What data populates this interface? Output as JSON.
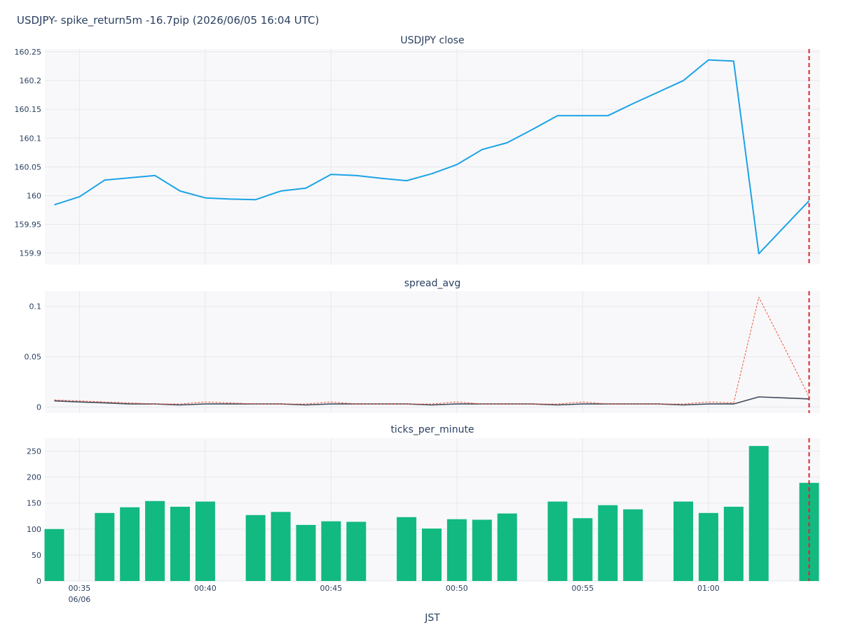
{
  "title": "USDJPY- spike_return5m -16.7pip (2026/06/05 16:04 UTC)",
  "colors": {
    "close": "#1ba3e6",
    "spread": "#3f4a5c",
    "spread_max": "#ef553b",
    "ticks": "#12b981",
    "event": "#d62728",
    "plot_bg": "#f8f8fa",
    "grid": "#e6e8ef"
  },
  "chart_data": [
    {
      "type": "line",
      "title": "USDJPY close",
      "x": [
        "00:34",
        "00:35",
        "00:36",
        "00:37",
        "00:38",
        "00:39",
        "00:40",
        "00:41",
        "00:42",
        "00:43",
        "00:44",
        "00:45",
        "00:46",
        "00:47",
        "00:48",
        "00:49",
        "00:50",
        "00:51",
        "00:52",
        "00:53",
        "00:54",
        "00:55",
        "00:56",
        "00:57",
        "00:58",
        "00:59",
        "01:00",
        "01:01",
        "01:02",
        "01:03",
        "01:04"
      ],
      "series": [
        {
          "values": [
            159.984,
            159.998,
            160.027,
            160.031,
            160.035,
            160.008,
            159.996,
            159.994,
            159.993,
            160.008,
            160.013,
            160.037,
            160.035,
            160.03,
            160.026,
            160.038,
            160.054,
            160.08,
            160.092,
            160.115,
            160.139,
            160.139,
            160.139,
            160.16,
            160.18,
            160.2,
            160.236,
            160.234,
            159.899,
            159.945,
            159.991
          ]
        }
      ],
      "ylim": [
        159.88,
        160.255
      ],
      "yticks": [
        "159.9",
        "159.95",
        "160",
        "160.05",
        "160.1",
        "160.15",
        "160.2",
        "160.25"
      ],
      "grid": true
    },
    {
      "type": "line",
      "title": "spread_avg",
      "x": [
        "00:34",
        "00:35",
        "00:36",
        "00:37",
        "00:38",
        "00:39",
        "00:40",
        "00:41",
        "00:42",
        "00:43",
        "00:44",
        "00:45",
        "00:46",
        "00:47",
        "00:48",
        "00:49",
        "00:50",
        "00:51",
        "00:52",
        "00:53",
        "00:54",
        "00:55",
        "00:56",
        "00:57",
        "00:58",
        "00:59",
        "01:00",
        "01:01",
        "01:02",
        "01:03",
        "01:04"
      ],
      "series": [
        {
          "style": "solid",
          "values": [
            0.006,
            0.005,
            0.004,
            0.003,
            0.003,
            0.002,
            0.003,
            0.003,
            0.003,
            0.003,
            0.002,
            0.003,
            0.003,
            0.003,
            0.003,
            0.002,
            0.003,
            0.003,
            0.003,
            0.003,
            0.002,
            0.003,
            0.003,
            0.003,
            0.003,
            0.002,
            0.003,
            0.003,
            0.01,
            0.009,
            0.008
          ]
        },
        {
          "style": "dotted",
          "values": [
            0.007,
            0.006,
            0.005,
            0.004,
            0.003,
            0.003,
            0.005,
            0.004,
            0.003,
            0.003,
            0.003,
            0.005,
            0.003,
            0.003,
            0.003,
            0.003,
            0.005,
            0.003,
            0.003,
            0.003,
            0.003,
            0.005,
            0.003,
            0.003,
            0.003,
            0.003,
            0.005,
            0.004,
            0.109,
            0.06,
            0.01
          ]
        }
      ],
      "ylim": [
        -0.006,
        0.115
      ],
      "yticks": [
        "0",
        "0.05",
        "0.1"
      ],
      "grid": true
    },
    {
      "type": "bar",
      "title": "ticks_per_minute",
      "xlabel": "JST",
      "x": [
        "00:34",
        "00:35",
        "00:36",
        "00:37",
        "00:38",
        "00:39",
        "00:40",
        "00:41",
        "00:42",
        "00:43",
        "00:44",
        "00:45",
        "00:46",
        "00:47",
        "00:48",
        "00:49",
        "00:50",
        "00:51",
        "00:52",
        "00:53",
        "00:54",
        "00:55",
        "00:56",
        "00:57",
        "00:58",
        "00:59",
        "01:00",
        "01:01",
        "01:02",
        "01:03",
        "01:04"
      ],
      "values": [
        100,
        0,
        131,
        142,
        154,
        143,
        153,
        0,
        127,
        133,
        108,
        115,
        114,
        0,
        123,
        101,
        119,
        118,
        130,
        0,
        153,
        121,
        146,
        138,
        0,
        153,
        131,
        143,
        260,
        0,
        189
      ],
      "ylim": [
        0,
        275
      ],
      "yticks": [
        "0",
        "50",
        "100",
        "150",
        "200",
        "250"
      ],
      "grid": true
    }
  ],
  "x_axis": {
    "tick_labels": [
      "00:35",
      "00:40",
      "00:45",
      "00:50",
      "00:55",
      "01:00"
    ],
    "first_date": "06/06"
  },
  "event_marker": {
    "x": "01:04",
    "style": "dashed"
  }
}
